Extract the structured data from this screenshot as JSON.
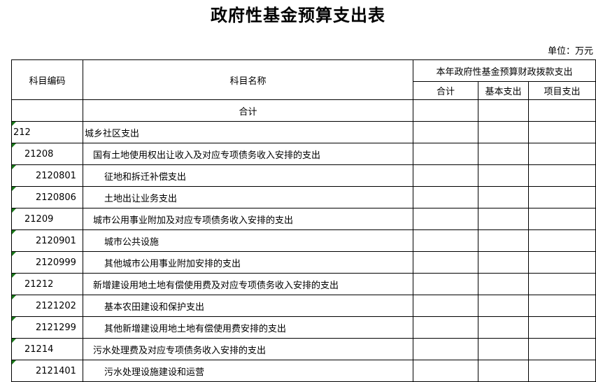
{
  "title": "政府性基金预算支出表",
  "unit": "单位：万元",
  "headers": {
    "code": "科目编码",
    "name": "科目名称",
    "group": "本年政府性基金预算财政拨款支出",
    "total": "合计",
    "basic": "基本支出",
    "project": "项目支出"
  },
  "total_row": {
    "label": "合计"
  },
  "rows": [
    {
      "code": "212",
      "name": "城乡社区支出",
      "level": 0
    },
    {
      "code": "21208",
      "name": "国有土地使用权出让收入及对应专项债务收入安排的支出",
      "level": 1
    },
    {
      "code": "2120801",
      "name": "征地和拆迁补偿支出",
      "level": 2
    },
    {
      "code": "2120806",
      "name": "土地出让业务支出",
      "level": 2
    },
    {
      "code": "21209",
      "name": "城市公用事业附加及对应专项债务收入安排的支出",
      "level": 1
    },
    {
      "code": "2120901",
      "name": "城市公共设施",
      "level": 2
    },
    {
      "code": "2120999",
      "name": "其他城市公用事业附加安排的支出",
      "level": 2
    },
    {
      "code": "21212",
      "name": "新增建设用地土地有偿使用费及对应专项债务收入安排的支出",
      "level": 1
    },
    {
      "code": "2121202",
      "name": "基本农田建设和保护支出",
      "level": 2
    },
    {
      "code": "2121299",
      "name": "其他新增建设用地土地有偿使用费安排的支出",
      "level": 2
    },
    {
      "code": "21214",
      "name": "污水处理费及对应专项债务收入安排的支出",
      "level": 1
    },
    {
      "code": "2121401",
      "name": "污水处理设施建设和运营",
      "level": 2
    }
  ]
}
